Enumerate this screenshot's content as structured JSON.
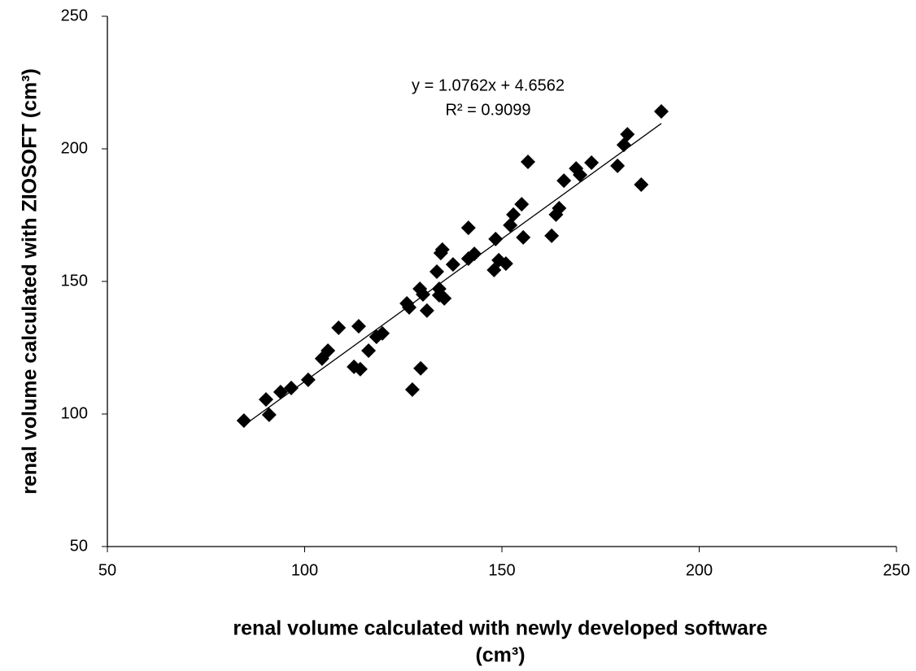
{
  "chart_data": {
    "type": "scatter",
    "xlabel": [
      "renal volume calculated with newly developed software",
      "(cm³)"
    ],
    "ylabel": "renal volume calculated with ZIOSOFT (cm³)",
    "xlim": [
      50,
      250
    ],
    "xticks": [
      50,
      100,
      150,
      200,
      250
    ],
    "ylim": [
      50,
      250
    ],
    "yticks": [
      50,
      100,
      150,
      200,
      250
    ],
    "grid": false,
    "series": [
      {
        "color": "#000000",
        "x": [
          84.6,
          90.2,
          91.0,
          93.9,
          96.6,
          100.9,
          104.4,
          105.9,
          108.6,
          112.5,
          113.7,
          114.1,
          116.2,
          118.2,
          119.7,
          125.9,
          126.5,
          127.3,
          129.4,
          129.2,
          130.0,
          131.0,
          133.5,
          134.1,
          134.1,
          134.5,
          134.9,
          135.4,
          137.6,
          141.5,
          141.5,
          143.0,
          148.4,
          148.0,
          149.2,
          151.0,
          152.1,
          152.9,
          155.0,
          155.4,
          156.6,
          162.6,
          163.7,
          164.5,
          165.7,
          168.8,
          169.8,
          172.7,
          179.3,
          180.9,
          181.8,
          185.3,
          190.4
        ],
        "values": [
          97.5,
          105.5,
          99.7,
          108.3,
          109.8,
          112.9,
          120.9,
          123.9,
          132.5,
          117.8,
          133.1,
          116.9,
          123.9,
          129.1,
          130.4,
          141.7,
          140.2,
          109.2,
          117.2,
          147.2,
          145.1,
          139.0,
          153.7,
          147.2,
          144.8,
          160.7,
          162.0,
          143.6,
          156.4,
          170.2,
          158.6,
          160.4,
          166.0,
          154.3,
          158.0,
          156.7,
          171.2,
          175.2,
          179.1,
          166.6,
          195.1,
          167.2,
          175.2,
          177.6,
          188.0,
          192.6,
          190.2,
          194.8,
          193.6,
          201.5,
          205.5,
          186.5,
          214.1
        ]
      }
    ],
    "trendline": {
      "slope": 1.0762,
      "intercept": 4.6562,
      "equation": "y = 1.0762x + 4.6562",
      "r2": "R² = 0.9099"
    }
  }
}
